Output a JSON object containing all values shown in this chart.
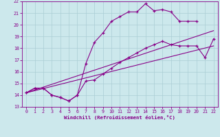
{
  "xlabel": "Windchill (Refroidissement éolien,°C)",
  "bg_color": "#cce8ec",
  "grid_color": "#aacdd4",
  "line_color": "#880088",
  "xmin": 0,
  "xmax": 22,
  "ymin": 13,
  "ymax": 22,
  "series": [
    {
      "x": [
        0,
        1,
        2,
        3,
        4,
        5,
        6,
        7,
        8,
        9,
        10,
        11,
        12,
        13,
        14,
        15,
        16,
        17,
        18,
        19,
        20
      ],
      "y": [
        14.2,
        14.6,
        14.6,
        14.0,
        13.8,
        13.5,
        14.0,
        16.7,
        18.5,
        19.3,
        20.3,
        20.7,
        21.1,
        21.1,
        21.8,
        21.2,
        21.3,
        21.1,
        20.3,
        20.3,
        20.3
      ]
    },
    {
      "x": [
        0,
        1,
        2,
        3,
        4,
        5,
        6,
        7,
        8,
        9,
        10,
        11,
        12,
        13,
        14,
        15,
        16,
        17,
        18,
        19,
        20,
        21,
        22
      ],
      "y": [
        14.2,
        14.6,
        14.6,
        14.0,
        13.8,
        13.5,
        14.0,
        15.2,
        15.3,
        15.8,
        16.3,
        16.8,
        17.2,
        17.6,
        18.0,
        18.3,
        18.6,
        18.3,
        18.2,
        18.2,
        18.2,
        17.2,
        18.8
      ]
    },
    {
      "x": [
        0,
        22
      ],
      "y": [
        14.2,
        18.2
      ]
    },
    {
      "x": [
        0,
        22
      ],
      "y": [
        14.2,
        19.5
      ]
    }
  ]
}
